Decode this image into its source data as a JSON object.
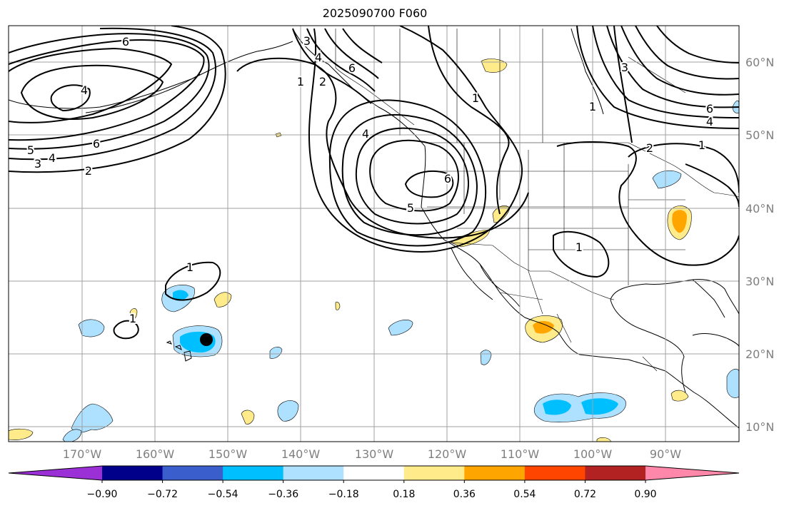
{
  "title": "2025090700 F060",
  "map": {
    "lon_labels": [
      "170°W",
      "160°W",
      "150°W",
      "140°W",
      "130°W",
      "120°W",
      "110°W",
      "100°W",
      "90°W"
    ],
    "lat_labels": [
      "60°N",
      "50°N",
      "40°N",
      "30°N",
      "20°N",
      "10°N"
    ],
    "contour_labels": [
      "6",
      "4",
      "5",
      "3",
      "2",
      "4",
      "6",
      "1",
      "2",
      "3",
      "4",
      "6",
      "1",
      "4",
      "5",
      "6",
      "1",
      "2",
      "1",
      "1",
      "6",
      "4",
      "3",
      "1",
      "1"
    ]
  },
  "colorbar": {
    "tick_labels": [
      "−0.90",
      "−0.72",
      "−0.54",
      "−0.36",
      "−0.18",
      "0.18",
      "0.36",
      "0.54",
      "0.72",
      "0.90"
    ],
    "colors": [
      "#9b30d6",
      "#00008b",
      "#3a5fcd",
      "#00bfff",
      "#aee0ff",
      "#ffffff",
      "#ffeb8a",
      "#ffa500",
      "#ff4500",
      "#b22222",
      "#ff88aa"
    ]
  }
}
